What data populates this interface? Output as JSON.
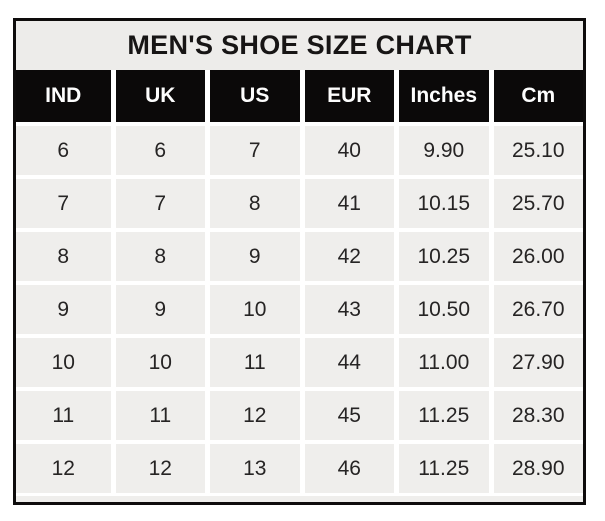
{
  "title": "MEN'S SHOE SIZE CHART",
  "colors": {
    "page_bg": "#ffffff",
    "outer_border": "#0e0c0c",
    "title_bg": "#edecea",
    "title_text": "#171515",
    "header_bg": "#0b0909",
    "header_text": "#fdfdfd",
    "cell_bg": "#efeeec",
    "cell_text": "#262424",
    "gridline": "#ffffff"
  },
  "chart_data": {
    "type": "table",
    "title": "MEN'S SHOE SIZE CHART",
    "columns": [
      "IND",
      "UK",
      "US",
      "EUR",
      "Inches",
      "Cm"
    ],
    "rows": [
      [
        "6",
        "6",
        "7",
        "40",
        "9.90",
        "25.10"
      ],
      [
        "7",
        "7",
        "8",
        "41",
        "10.15",
        "25.70"
      ],
      [
        "8",
        "8",
        "9",
        "42",
        "10.25",
        "26.00"
      ],
      [
        "9",
        "9",
        "10",
        "43",
        "10.50",
        "26.70"
      ],
      [
        "10",
        "10",
        "11",
        "44",
        "11.00",
        "27.90"
      ],
      [
        "11",
        "11",
        "12",
        "45",
        "11.25",
        "28.30"
      ],
      [
        "12",
        "12",
        "13",
        "46",
        "11.25",
        "28.90"
      ]
    ]
  }
}
